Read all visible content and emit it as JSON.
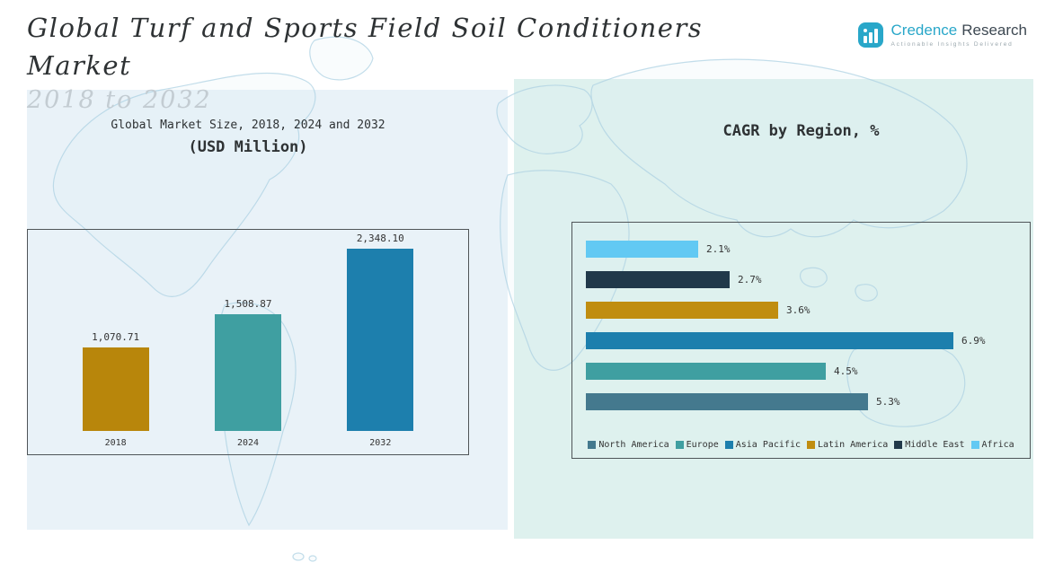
{
  "header": {
    "title_line1": "Global Turf and Sports Field Soil Conditioners",
    "title_line2": "Market",
    "subtitle": "2018 to 2032",
    "logo": {
      "brand_credence": "Credence",
      "brand_research": "Research",
      "tagline": "Actionable Insights Delivered",
      "icon_color": "#29a7c9"
    }
  },
  "left_chart": {
    "title_line1": "Global Market Size, 2018, 2024 and 2032",
    "title_line2": "(USD Million)"
  },
  "right_chart": {
    "title": "CAGR by Region, %"
  },
  "colors": {
    "panel_left_bg": "#e9f2f8",
    "panel_right_bg": "#def1ee",
    "gold": "#b8860b",
    "teal": "#3f9fa1",
    "blue": "#1d7fad",
    "steel": "#44798e",
    "navy": "#21394a",
    "light_blue": "#62c9f3"
  },
  "chart_data": [
    {
      "type": "bar",
      "orientation": "vertical",
      "title": "Global Market Size, 2018, 2024 and 2032 (USD Million)",
      "categories": [
        "2018",
        "2024",
        "2032"
      ],
      "values": [
        1070.71,
        1508.87,
        2348.1
      ],
      "data_labels": [
        "1,070.71",
        "1,508.87",
        "2,348.10"
      ],
      "ylabel": "USD Million",
      "ylim": [
        0,
        2500
      ],
      "grid": false,
      "colors": [
        "#b8860b",
        "#3f9fa1",
        "#1d7fad"
      ]
    },
    {
      "type": "bar",
      "orientation": "horizontal",
      "title": "CAGR by Region, %",
      "categories": [
        "Africa",
        "Middle East",
        "Latin America",
        "Asia Pacific",
        "Europe",
        "North America"
      ],
      "values": [
        2.1,
        2.7,
        3.6,
        6.9,
        4.5,
        5.3
      ],
      "data_labels": [
        "2.1%",
        "2.7%",
        "3.6%",
        "6.9%",
        "4.5%",
        "5.3%"
      ],
      "xlim": [
        0,
        7.5
      ],
      "grid": false,
      "legend_position": "bottom",
      "colors": [
        "#62c9f3",
        "#21394a",
        "#c08d10",
        "#1d7fad",
        "#3f9fa1",
        "#44798e"
      ],
      "legend": [
        {
          "label": "North America",
          "color": "#44798e"
        },
        {
          "label": "Europe",
          "color": "#3f9fa1"
        },
        {
          "label": "Asia Pacific",
          "color": "#1d7fad"
        },
        {
          "label": "Latin America",
          "color": "#c08d10"
        },
        {
          "label": "Middle East",
          "color": "#21394a"
        },
        {
          "label": "Africa",
          "color": "#62c9f3"
        }
      ]
    }
  ]
}
